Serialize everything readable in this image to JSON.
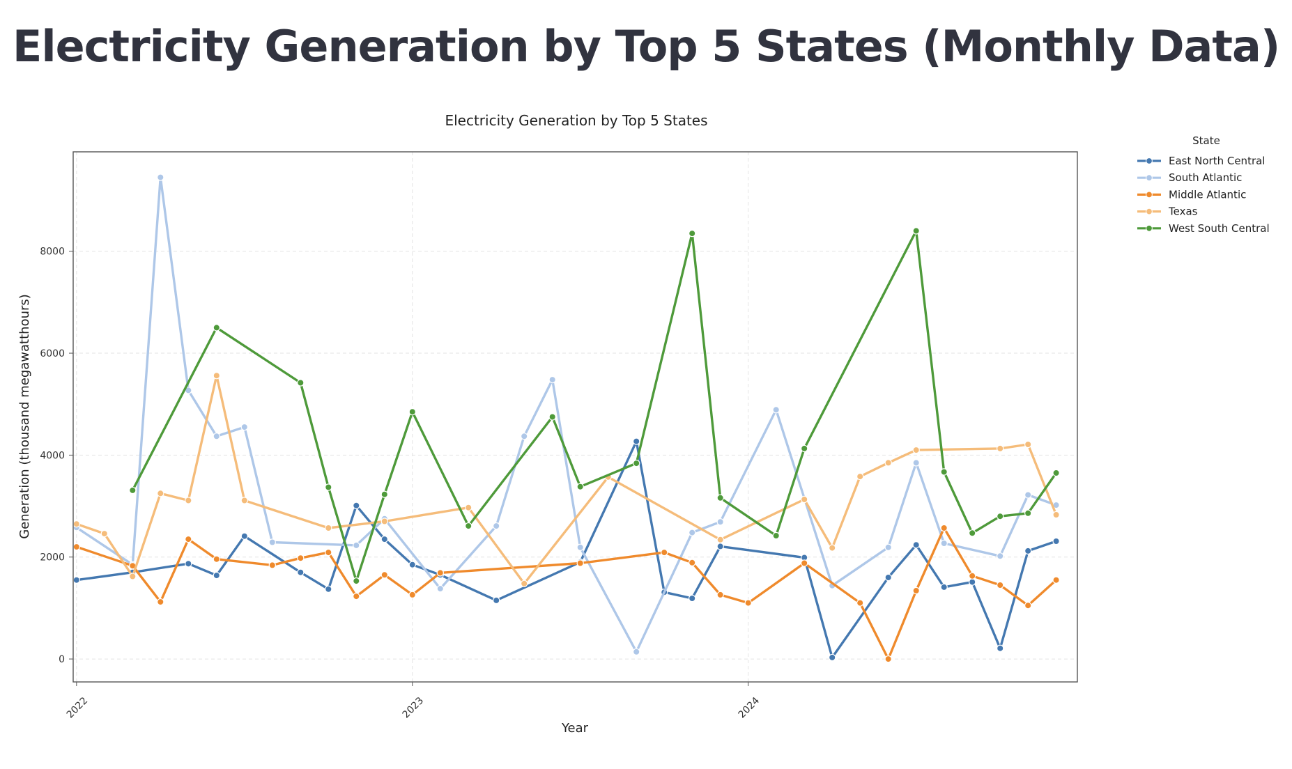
{
  "page": {
    "title": "Electricity Generation by Top 5 States (Monthly Data)"
  },
  "chart_data": {
    "type": "line",
    "title": "Electricity Generation by Top 5 States",
    "xlabel": "Year",
    "ylabel": "Generation (thousand megawatthours)",
    "xlim": [
      2021.99,
      2024.98
    ],
    "ylim": [
      -450,
      9950
    ],
    "x_ticks": [
      2022,
      2023,
      2024
    ],
    "x_tick_labels": [
      "2022",
      "2023",
      "2024"
    ],
    "y_ticks": [
      0,
      2000,
      4000,
      6000,
      8000
    ],
    "y_tick_labels": [
      "0",
      "2000",
      "4000",
      "6000",
      "8000"
    ],
    "grid": true,
    "legend": {
      "title": "State",
      "position": "outside-right"
    },
    "series": [
      {
        "name": "East North Central",
        "color": "#4478b0",
        "x": [
          2022.0,
          2022.167,
          2022.333,
          2022.417,
          2022.5,
          2022.667,
          2022.75,
          2022.833,
          2022.917,
          2023.0,
          2023.083,
          2023.25,
          2023.5,
          2023.667,
          2023.75,
          2023.833,
          2023.917,
          2024.167,
          2024.25,
          2024.417,
          2024.5,
          2024.583,
          2024.667,
          2024.75,
          2024.833,
          2024.917
        ],
        "y": [
          1550,
          1700,
          1870,
          1640,
          2410,
          1700,
          1370,
          3010,
          2350,
          1850,
          1650,
          1150,
          1900,
          4270,
          1310,
          1190,
          2210,
          1990,
          30,
          1600,
          2240,
          1410,
          1510,
          210,
          2120,
          2310
        ]
      },
      {
        "name": "South Atlantic",
        "color": "#aec7e8",
        "x": [
          2022.0,
          2022.167,
          2022.25,
          2022.333,
          2022.417,
          2022.5,
          2022.583,
          2022.833,
          2022.917,
          2023.083,
          2023.25,
          2023.333,
          2023.417,
          2023.5,
          2023.667,
          2023.833,
          2023.917,
          2024.083,
          2024.25,
          2024.417,
          2024.5,
          2024.583,
          2024.75,
          2024.833,
          2024.917
        ],
        "y": [
          2580,
          1850,
          9450,
          5270,
          4370,
          4550,
          2290,
          2230,
          2750,
          1380,
          2610,
          4370,
          5480,
          2190,
          140,
          2480,
          2690,
          4890,
          1440,
          2190,
          3850,
          2270,
          2020,
          3220,
          3020
        ]
      },
      {
        "name": "Middle Atlantic",
        "color": "#ef8a2c",
        "x": [
          2022.0,
          2022.167,
          2022.25,
          2022.333,
          2022.417,
          2022.583,
          2022.667,
          2022.75,
          2022.833,
          2022.917,
          2023.0,
          2023.083,
          2023.5,
          2023.75,
          2023.833,
          2023.917,
          2024.0,
          2024.167,
          2024.333,
          2024.417,
          2024.5,
          2024.583,
          2024.667,
          2024.75,
          2024.833,
          2024.917
        ],
        "y": [
          2200,
          1830,
          1120,
          2350,
          1960,
          1840,
          1980,
          2090,
          1230,
          1650,
          1260,
          1690,
          1880,
          2090,
          1890,
          1260,
          1100,
          1880,
          1100,
          0,
          1340,
          2570,
          1630,
          1450,
          1050,
          1550
        ]
      },
      {
        "name": "Texas",
        "color": "#f5bc7a",
        "x": [
          2022.0,
          2022.083,
          2022.167,
          2022.25,
          2022.333,
          2022.417,
          2022.5,
          2022.75,
          2022.917,
          2023.167,
          2023.333,
          2023.583,
          2023.917,
          2024.167,
          2024.25,
          2024.333,
          2024.417,
          2024.5,
          2024.75,
          2024.833,
          2024.917
        ],
        "y": [
          2650,
          2460,
          1620,
          3250,
          3110,
          5560,
          3110,
          2570,
          2700,
          2970,
          1480,
          3570,
          2340,
          3130,
          2180,
          3580,
          3850,
          4100,
          4130,
          4210,
          2830
        ]
      },
      {
        "name": "West South Central",
        "color": "#4e9a3a",
        "x": [
          2022.167,
          2022.417,
          2022.667,
          2022.75,
          2022.833,
          2022.917,
          2023.0,
          2023.167,
          2023.417,
          2023.5,
          2023.667,
          2023.833,
          2023.917,
          2024.083,
          2024.167,
          2024.5,
          2024.583,
          2024.667,
          2024.75,
          2024.833,
          2024.917
        ],
        "y": [
          3310,
          6500,
          5420,
          3370,
          1530,
          3230,
          4850,
          2610,
          4750,
          3380,
          3840,
          8350,
          3160,
          2420,
          4130,
          8400,
          3670,
          2470,
          2800,
          2860,
          3650
        ]
      }
    ]
  }
}
